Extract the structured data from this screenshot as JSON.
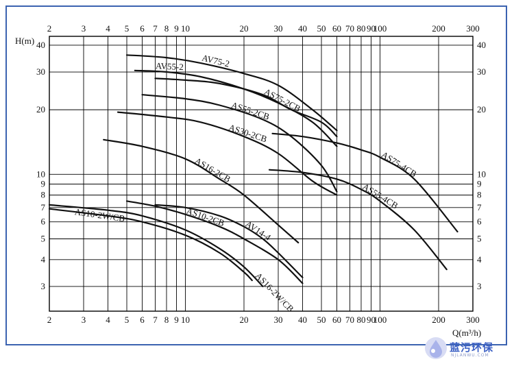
{
  "chart_data": {
    "type": "line",
    "xscale": "log",
    "yscale": "log",
    "xlim": [
      2,
      300
    ],
    "ylim": [
      2.3,
      44
    ],
    "xlabel": "Q(m³/h)",
    "ylabel": "H(m)",
    "x_ticks": [
      2,
      3,
      4,
      5,
      6,
      7,
      8,
      9,
      10,
      20,
      30,
      40,
      50,
      60,
      70,
      80,
      90,
      100,
      200,
      300
    ],
    "x_tick_labels": [
      "2",
      "3",
      "4",
      "5",
      "6",
      "7",
      "8",
      "9",
      "10",
      "20",
      "30",
      "40",
      "50",
      "60",
      "70",
      "80",
      "90",
      "100",
      "200",
      "300"
    ],
    "y_ticks": [
      3,
      4,
      5,
      6,
      7,
      8,
      9,
      10,
      20,
      30,
      40
    ],
    "y_tick_labels": [
      "3",
      "4",
      "5",
      "6",
      "7",
      "8",
      "9",
      "10",
      "20",
      "30",
      "40"
    ],
    "grid": true,
    "series": [
      {
        "name": "AV75-2",
        "x": [
          5,
          8,
          12,
          20,
          30,
          45,
          60
        ],
        "y": [
          36,
          35,
          33,
          29.5,
          26,
          20,
          16
        ]
      },
      {
        "name": "AV55-2",
        "x": [
          5.5,
          8,
          12,
          20,
          30,
          45,
          60
        ],
        "y": [
          30.5,
          30,
          28.5,
          25,
          21.5,
          17.5,
          13.5
        ]
      },
      {
        "name": "AS75-2CB",
        "x": [
          7,
          10,
          15,
          25,
          35,
          50,
          60
        ],
        "y": [
          28,
          27.5,
          26.5,
          23.5,
          20,
          17.5,
          15
        ]
      },
      {
        "name": "AS55-2CB",
        "x": [
          6,
          10,
          15,
          25,
          35,
          50,
          60
        ],
        "y": [
          23.5,
          22.5,
          21,
          18,
          15,
          11,
          8.3
        ]
      },
      {
        "name": "AS30-2CB",
        "x": [
          4.5,
          8,
          12,
          20,
          30,
          45,
          60
        ],
        "y": [
          19.5,
          18.5,
          17.5,
          15,
          12.5,
          9.3,
          8
        ]
      },
      {
        "name": "AS16-2CB",
        "x": [
          3.8,
          6,
          10,
          15,
          20,
          30,
          38
        ],
        "y": [
          14.5,
          13.5,
          11.8,
          9.5,
          8,
          5.8,
          4.8
        ]
      },
      {
        "name": "AS75-4CB",
        "x": [
          28,
          40,
          60,
          80,
          100,
          150,
          250
        ],
        "y": [
          15.5,
          15,
          14,
          13,
          12,
          9.5,
          5.4
        ]
      },
      {
        "name": "AS55-4CB",
        "x": [
          27,
          40,
          60,
          80,
          100,
          150,
          220
        ],
        "y": [
          10.5,
          10.2,
          9.5,
          8.5,
          7.5,
          5.5,
          3.6
        ]
      },
      {
        "name": "AV14-4",
        "x": [
          7,
          10,
          15,
          20,
          25,
          30,
          40
        ],
        "y": [
          7.2,
          7,
          6.4,
          5.7,
          5,
          4.3,
          3.3
        ]
      },
      {
        "name": "AS10-2CB",
        "x": [
          5,
          7,
          10,
          15,
          20,
          30,
          40
        ],
        "y": [
          7.5,
          7.1,
          6.5,
          5.7,
          5,
          4,
          3.1
        ]
      },
      {
        "name": "AS16-2W/CB",
        "x": [
          2,
          4,
          6,
          10,
          15,
          20,
          25
        ],
        "y": [
          7.2,
          6.8,
          6.4,
          5.5,
          4.5,
          3.7,
          3
        ]
      },
      {
        "name": "AS10-2W/CB",
        "x": [
          2,
          4,
          6,
          10,
          15,
          20,
          22
        ],
        "y": [
          6.9,
          6.4,
          6,
          5.2,
          4.3,
          3.5,
          3.2
        ]
      }
    ]
  },
  "watermark": {
    "brand": "蓝污环保",
    "sub": "NJLANWU.COM"
  }
}
